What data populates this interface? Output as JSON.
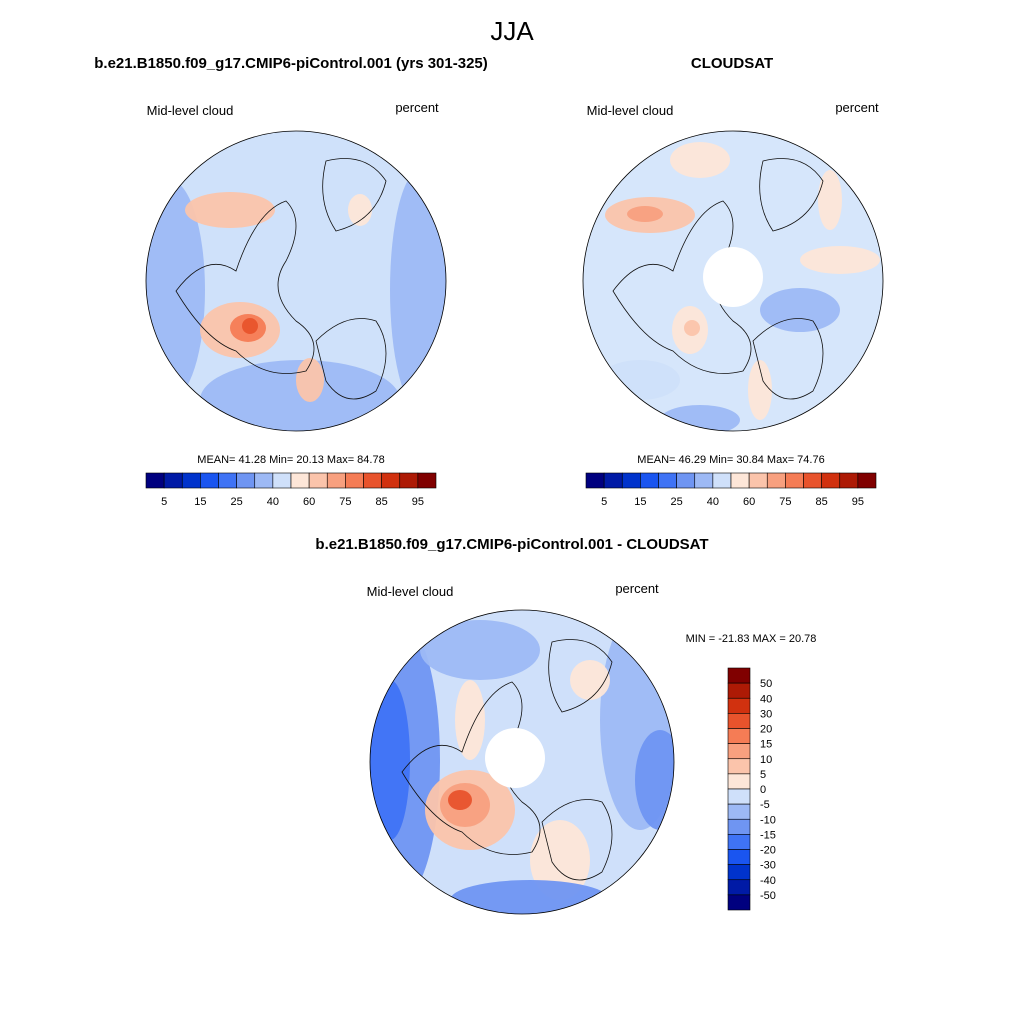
{
  "title": "JJA",
  "panels": [
    {
      "title": "b.e21.B1850.f09_g17.CMIP6-piControl.001 (yrs 301-325)",
      "left_label": "Mid-level cloud",
      "right_label": "percent",
      "stats": "MEAN=  41.28  Min=  20.13  Max=  84.78",
      "colorbar_labels": [
        5,
        15,
        25,
        40,
        60,
        75,
        85,
        95
      ]
    },
    {
      "title": "CLOUDSAT",
      "left_label": "Mid-level cloud",
      "right_label": "percent",
      "stats": "MEAN=  46.29  Min=  30.84  Max=  74.76",
      "colorbar_labels": [
        5,
        15,
        25,
        40,
        60,
        75,
        85,
        95
      ]
    },
    {
      "title": "b.e21.B1850.f09_g17.CMIP6-piControl.001 - CLOUDSAT",
      "left_label": "Mid-level cloud",
      "right_label": "percent",
      "stats": "MIN = -21.83 MAX =  20.78",
      "colorbar_labels": [
        50,
        40,
        30,
        20,
        15,
        10,
        5,
        0,
        -5,
        -10,
        -15,
        -20,
        -30,
        -40,
        -50
      ]
    }
  ]
}
